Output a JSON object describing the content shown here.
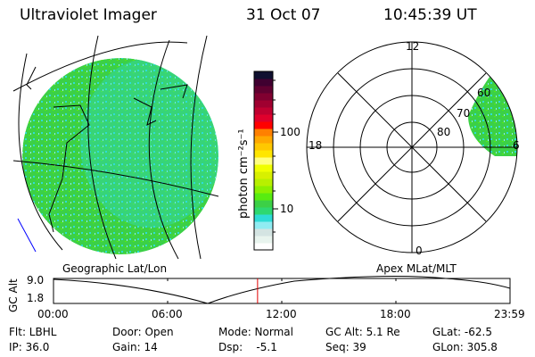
{
  "header": {
    "instrument": "Ultraviolet Imager",
    "date": "31 Oct 07",
    "time": "10:45:39 UT"
  },
  "colorbar": {
    "label": "photon cm⁻²s⁻¹",
    "ticks": [
      "100",
      "10"
    ],
    "colors": [
      "#ffffff",
      "#e8f4ee",
      "#d4e4e2",
      "#90ecf2",
      "#2edcd6",
      "#2ed870",
      "#3cd046",
      "#58ec10",
      "#8cf000",
      "#b8f000",
      "#d8f000",
      "#f0ff00",
      "#ffff80",
      "#ffe600",
      "#ffc800",
      "#ffa800",
      "#ff8000",
      "#ff0000",
      "#e0002c",
      "#c00030",
      "#a00030",
      "#800030",
      "#600030",
      "#400030",
      "#101030"
    ]
  },
  "polar": {
    "labels": {
      "top": "12",
      "left": "18",
      "right": "6",
      "bottom": "0",
      "r60": "60",
      "r70": "70",
      "r80": "80"
    }
  },
  "map": {
    "fill_color": "#3cd046",
    "speckle_color": "#2edcd6"
  },
  "timeline": {
    "left_caption": "Geographic Lat/Lon",
    "right_caption": "Apex MLat/MLT",
    "ylabel": "GC Alt",
    "ymax": "9.0",
    "ymin": "1.8",
    "xticks": [
      "00:00",
      "06:00",
      "12:00",
      "18:00",
      "23:59"
    ],
    "current_time_fraction": 0.447,
    "marker_color": "#e00000"
  },
  "status": {
    "flt": "Flt: LBHL",
    "ip": "IP: 36.0",
    "door": "Door: Open",
    "gain": "Gain: 14",
    "mode": "Mode: Normal",
    "dsp": "Dsp:    -5.1",
    "gcalt": "GC Alt: 5.1 Re",
    "seq": "Seq: 39",
    "glat": "GLat: -62.5",
    "glon": "GLon: 305.8"
  }
}
